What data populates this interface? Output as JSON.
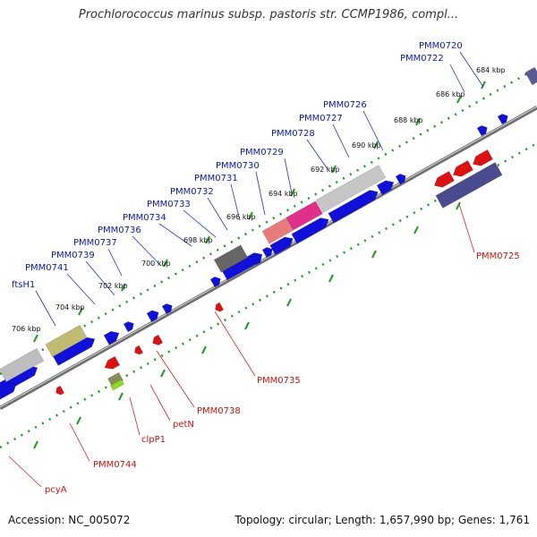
{
  "header": {
    "title": "Prochlorococcus marinus subsp. pastoris str. CCMP1986, compl..."
  },
  "footer": {
    "accession": "Accession: NC_005072",
    "stats": "Topology: circular; Length: 1,657,990 bp; Genes: 1,761"
  },
  "map": {
    "colors": {
      "forward_gene": "#1010dd",
      "reverse_gene": "#dd1111",
      "backbone": "#777777",
      "tick": "#229922",
      "label_forward": "#0a1aa8",
      "label_reverse": "#cc1111"
    },
    "ticks": [
      "684 kbp",
      "686 kbp",
      "688 kbp",
      "690 kbp",
      "692 kbp",
      "694 kbp",
      "696 kbp",
      "698 kbp",
      "700 kbp",
      "702 kbp",
      "704 kbp",
      "706 kbp"
    ],
    "forward_labels": [
      "PMM0720",
      "PMM0722",
      "PMM0726",
      "PMM0727",
      "PMM0728",
      "PMM0729",
      "PMM0730",
      "PMM0731",
      "PMM0732",
      "PMM0733",
      "PMM0734",
      "PMM0736",
      "PMM0737",
      "PMM0739",
      "PMM0741",
      "ftsH1"
    ],
    "reverse_labels": [
      "PMM0725",
      "PMM0735",
      "PMM0738",
      "petN",
      "clpP1",
      "PMM0744",
      "pcyA"
    ]
  }
}
